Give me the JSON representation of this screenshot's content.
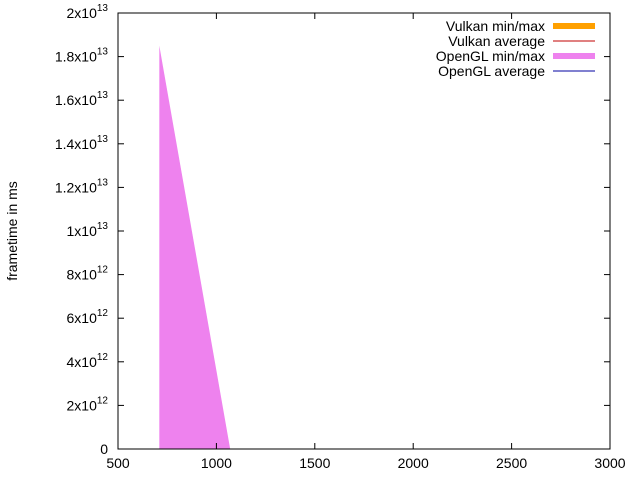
{
  "chart_data": {
    "type": "area",
    "xlabel": "",
    "ylabel": "frametime in ms",
    "xlim": [
      500,
      3000
    ],
    "ylim": [
      0,
      20000000000000
    ],
    "x_ticks": [
      {
        "value": 500,
        "label": "500"
      },
      {
        "value": 1000,
        "label": "1000"
      },
      {
        "value": 1500,
        "label": "1500"
      },
      {
        "value": 2000,
        "label": "2000"
      },
      {
        "value": 2500,
        "label": "2500"
      },
      {
        "value": 3000,
        "label": "3000"
      }
    ],
    "y_ticks": [
      {
        "value": 0,
        "mant": "0",
        "exp": ""
      },
      {
        "value": 2000000000000,
        "mant": "2x10",
        "exp": "12"
      },
      {
        "value": 4000000000000,
        "mant": "4x10",
        "exp": "12"
      },
      {
        "value": 6000000000000,
        "mant": "6x10",
        "exp": "12"
      },
      {
        "value": 8000000000000,
        "mant": "8x10",
        "exp": "12"
      },
      {
        "value": 10000000000000,
        "mant": "1x10",
        "exp": "13"
      },
      {
        "value": 12000000000000,
        "mant": "1.2x10",
        "exp": "13"
      },
      {
        "value": 14000000000000,
        "mant": "1.4x10",
        "exp": "13"
      },
      {
        "value": 16000000000000,
        "mant": "1.6x10",
        "exp": "13"
      },
      {
        "value": 18000000000000,
        "mant": "1.8x10",
        "exp": "13"
      },
      {
        "value": 20000000000000,
        "mant": "2x10",
        "exp": "13"
      }
    ],
    "legend_position": "top-right",
    "series": [
      {
        "name": "Vulkan min/max",
        "style": "band",
        "color": "#ffa000",
        "x": [],
        "y_min": [],
        "y_max": []
      },
      {
        "name": "Vulkan average",
        "style": "line",
        "color": "#c00000",
        "x": [],
        "y": []
      },
      {
        "name": "OpenGL min/max",
        "style": "band",
        "color": "#ee82ee",
        "x": [
          710,
          1070
        ],
        "y_min": [
          0,
          0
        ],
        "y_max": [
          18500000000000,
          0
        ]
      },
      {
        "name": "OpenGL average",
        "style": "line",
        "color": "#0000a0",
        "x": [],
        "y": []
      }
    ]
  }
}
